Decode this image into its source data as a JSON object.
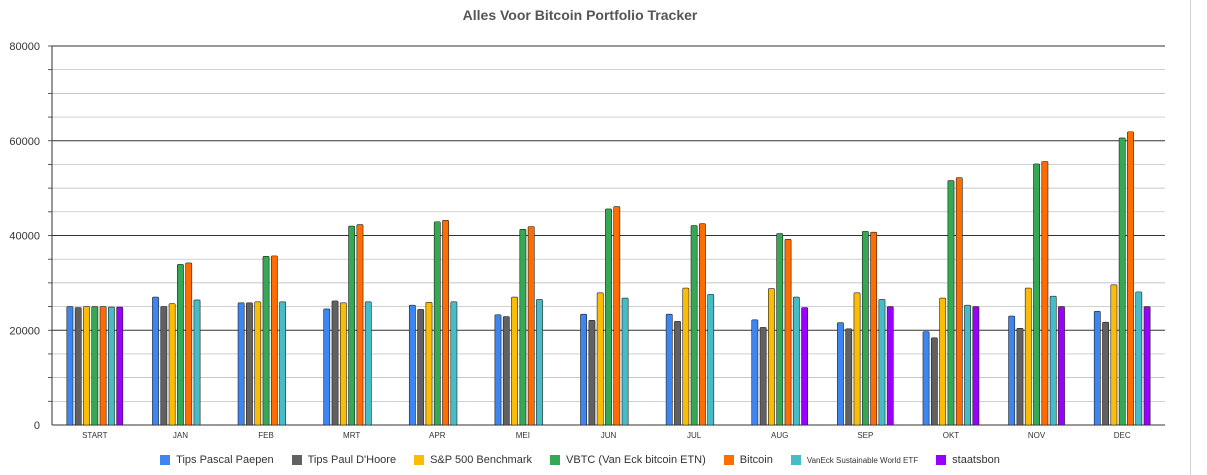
{
  "chart_data": {
    "type": "bar",
    "title": "Alles Voor Bitcoin Portfolio Tracker",
    "xlabel": "",
    "ylabel": "",
    "ylim": [
      0,
      80000
    ],
    "yticks": [
      "0",
      "20000",
      "40000",
      "60000",
      "80000"
    ],
    "grid": true,
    "legend_position": "bottom",
    "categories": [
      "START",
      "JAN",
      "FEB",
      "MRT",
      "APR",
      "MEI",
      "JUN",
      "JUL",
      "AUG",
      "SEP",
      "OKT",
      "NOV",
      "DEC"
    ],
    "series": [
      {
        "name": "Tips Pascal Paepen",
        "color": "#3d85f0",
        "values": [
          25000,
          27000,
          25800,
          24500,
          25300,
          23300,
          23400,
          23400,
          22200,
          21600,
          19700,
          23000,
          24000
        ]
      },
      {
        "name": "Tips Paul D'Hoore",
        "color": "#616161",
        "values": [
          24800,
          25000,
          25800,
          26200,
          24400,
          22900,
          22100,
          21900,
          20600,
          20300,
          18400,
          20400,
          21700
        ]
      },
      {
        "name": "S&P 500 Benchmark",
        "color": "#fbbc04",
        "values": [
          25000,
          25600,
          26000,
          25800,
          25900,
          27000,
          27900,
          28900,
          28800,
          27900,
          26800,
          28900,
          29600
        ]
      },
      {
        "name": "VBTC (Van Eck bitcoin ETN)",
        "color": "#34a853",
        "values": [
          25000,
          33900,
          35600,
          42000,
          42900,
          41300,
          45600,
          42100,
          40400,
          40900,
          51600,
          55100,
          60600
        ]
      },
      {
        "name": "Bitcoin",
        "color": "#ff6d01",
        "values": [
          25000,
          34200,
          35700,
          42300,
          43200,
          41900,
          46100,
          42500,
          39200,
          40700,
          52200,
          55600,
          61900
        ]
      },
      {
        "name": "VanEck Sustainable World  ETF",
        "color": "#46bdc6",
        "values": [
          24900,
          26400,
          26000,
          26000,
          26000,
          26500,
          26800,
          27600,
          27000,
          26500,
          25300,
          27200,
          28100
        ]
      },
      {
        "name": "staatsbon",
        "color": "#9900ff",
        "values": [
          24900,
          null,
          null,
          null,
          null,
          null,
          null,
          null,
          24800,
          25000,
          25000,
          25000,
          25000
        ]
      }
    ]
  }
}
